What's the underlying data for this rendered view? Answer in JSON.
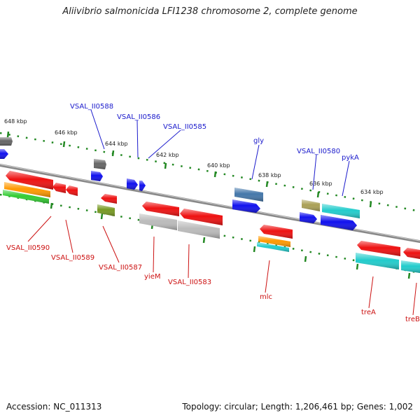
{
  "title": "Aliivibrio salmonicida LFI1238 chromosome 2, complete genome",
  "footer": {
    "accession": "Accession: NC_011313",
    "summary": "Topology: circular; Length: 1,206,461 bp; Genes: 1,002"
  },
  "scale_ticks": [
    "648 kbp",
    "646 kbp",
    "644 kbp",
    "642 kbp",
    "640 kbp",
    "638 kbp",
    "636 kbp",
    "634 kbp"
  ],
  "top_labels": [
    "VSAL_II0588",
    "VSAL_II0586",
    "VSAL_II0585",
    "gly",
    "VSAL_II0580",
    "pykA"
  ],
  "bottom_labels": [
    "VSAL_II0590",
    "VSAL_II0589",
    "VSAL_II0587",
    "yieM",
    "VSAL_II0583",
    "mlc",
    "treA",
    "treB"
  ],
  "colors": {
    "backbone": "#888888",
    "red": "#ee1111",
    "blue": "#1111ee",
    "cyan": "#22cccc",
    "gray": "#bbbbbb",
    "dark_gray": "#666666",
    "orange": "#ff9900",
    "green": "#33cc33",
    "olive": "#779922",
    "steel": "#4477aa",
    "khaki": "#aaa055",
    "top_label": "#1a1acc",
    "bottom_label": "#cc1111",
    "ticks": "#228822"
  }
}
